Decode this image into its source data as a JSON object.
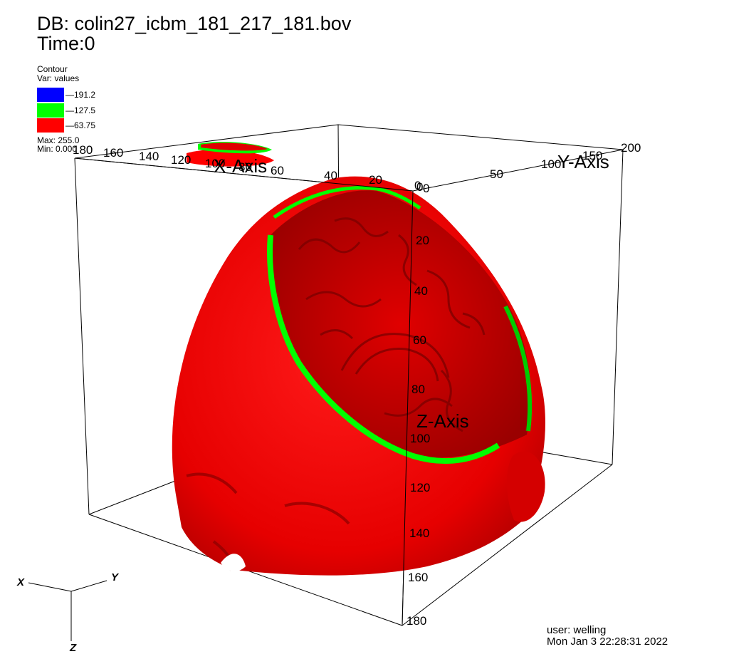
{
  "header": {
    "db": "DB: colin27_icbm_181_217_181.bov",
    "time": "Time:0"
  },
  "legend": {
    "title": "Contour",
    "var": "Var: values",
    "items": [
      {
        "label": "191.2",
        "color": "#0000ff"
      },
      {
        "label": "127.5",
        "color": "#00ff00"
      },
      {
        "label": "63.75",
        "color": "#ff0000"
      }
    ],
    "max": "Max: 255.0",
    "min": "Min: 0.000"
  },
  "axes": {
    "x_title": "X-Axis",
    "y_title": "Y-Axis",
    "z_title": "Z-Axis",
    "x_ticks": [
      "180",
      "160",
      "140",
      "120",
      "100",
      "80",
      "60",
      "40",
      "20",
      "0"
    ],
    "y_ticks": [
      "0",
      "50",
      "100",
      "150",
      "200"
    ],
    "z_ticks": [
      "0",
      "20",
      "40",
      "60",
      "80",
      "100",
      "120",
      "140",
      "160",
      "180"
    ]
  },
  "triad": {
    "x": "X",
    "y": "Y",
    "z": "Z"
  },
  "footer": {
    "user": "user: welling",
    "date": "Mon Jan  3 22:28:31 2022"
  },
  "colors": {
    "surface_red": "#ff0000",
    "surface_green": "#00ff00",
    "bounding_box": "#000000"
  }
}
